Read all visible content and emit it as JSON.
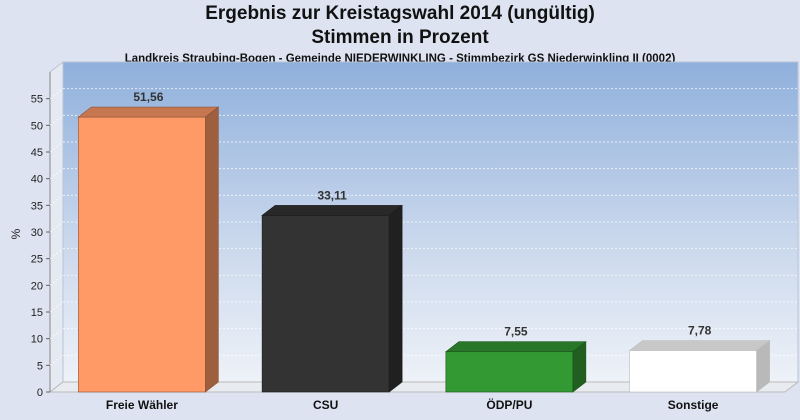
{
  "chart_data": {
    "type": "bar",
    "title": "Ergebnis zur Kreistagswahl 2014 (ungültig)",
    "title_line2": "Stimmen in Prozent",
    "subtitle": "Landkreis Straubing-Bogen - Gemeinde NIEDERWINKLING - Stimmbezirk GS Niederwinkling II (0002)",
    "ylabel": "%",
    "xlabel": "",
    "ylim": [
      0,
      60
    ],
    "yticks": [
      0,
      5,
      10,
      15,
      20,
      25,
      30,
      35,
      40,
      45,
      50,
      55
    ],
    "grid": true,
    "categories": [
      "Freie Wähler",
      "CSU",
      "ÖDP/PU",
      "Sonstige"
    ],
    "values": [
      51.56,
      33.11,
      7.55,
      7.78
    ],
    "value_labels": [
      "51,56",
      "33,11",
      "7,55",
      "7,78"
    ],
    "colors": [
      "#ff9966",
      "#333333",
      "#339933",
      "#ffffff"
    ]
  }
}
